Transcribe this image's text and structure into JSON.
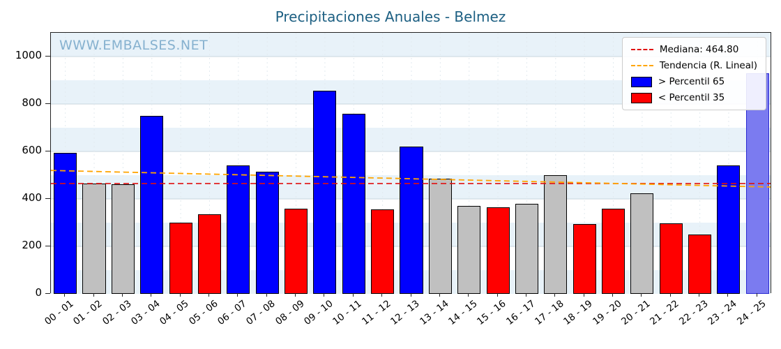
{
  "watermark": "WWW.EMBALSES.NET",
  "chart_data": {
    "type": "bar",
    "title": "Precipitaciones Anuales - Belmez",
    "title_color": "#1c5f82",
    "watermark_color": "#86b1cf",
    "categories": [
      "00 - 01",
      "01 - 02",
      "02 - 03",
      "03 - 04",
      "04 - 05",
      "05 - 06",
      "06 - 07",
      "07 - 08",
      "08 - 09",
      "09 - 10",
      "10 - 11",
      "11 - 12",
      "12 - 13",
      "13 - 14",
      "14 - 15",
      "15 - 16",
      "16 - 17",
      "17 - 18",
      "18 - 19",
      "19 - 20",
      "20 - 21",
      "21 - 22",
      "22 - 23",
      "23 - 24",
      "24 - 25"
    ],
    "values": [
      595,
      465,
      463,
      750,
      300,
      335,
      540,
      515,
      360,
      855,
      760,
      355,
      620,
      485,
      370,
      365,
      380,
      500,
      295,
      360,
      423,
      298,
      250,
      540,
      930
    ],
    "bar_color_keys": [
      "blue",
      "gray",
      "gray",
      "blue",
      "red",
      "red",
      "blue",
      "blue",
      "red",
      "blue",
      "blue",
      "red",
      "blue",
      "gray",
      "gray",
      "red",
      "gray",
      "gray",
      "red",
      "red",
      "gray",
      "red",
      "red",
      "blue",
      "blue_light"
    ],
    "colors": {
      "blue": "#0000ff",
      "red": "#ff0000",
      "gray": "#c0c0c0",
      "blue_light": "#7b7bf0"
    },
    "median": 464.8,
    "trend": {
      "start": 520,
      "end": 450
    },
    "ylim": [
      0,
      1100
    ],
    "yticks": [
      0,
      200,
      400,
      600,
      800,
      1000
    ],
    "grid": true,
    "legend_position": "upper right",
    "background_band_color": "#e8f2f9",
    "median_line_color": "#e01010",
    "trend_line_color": "#ffa500",
    "legend": [
      {
        "label": "Mediana: 464.80",
        "type": "line",
        "color": "#e01010"
      },
      {
        "label": "Tendencia (R. Lineal)",
        "type": "line",
        "color": "#ffa500"
      },
      {
        "label": "> Percentil 65",
        "type": "patch",
        "color": "#0000ff"
      },
      {
        "label": "< Percentil 35",
        "type": "patch",
        "color": "#ff0000"
      }
    ]
  }
}
